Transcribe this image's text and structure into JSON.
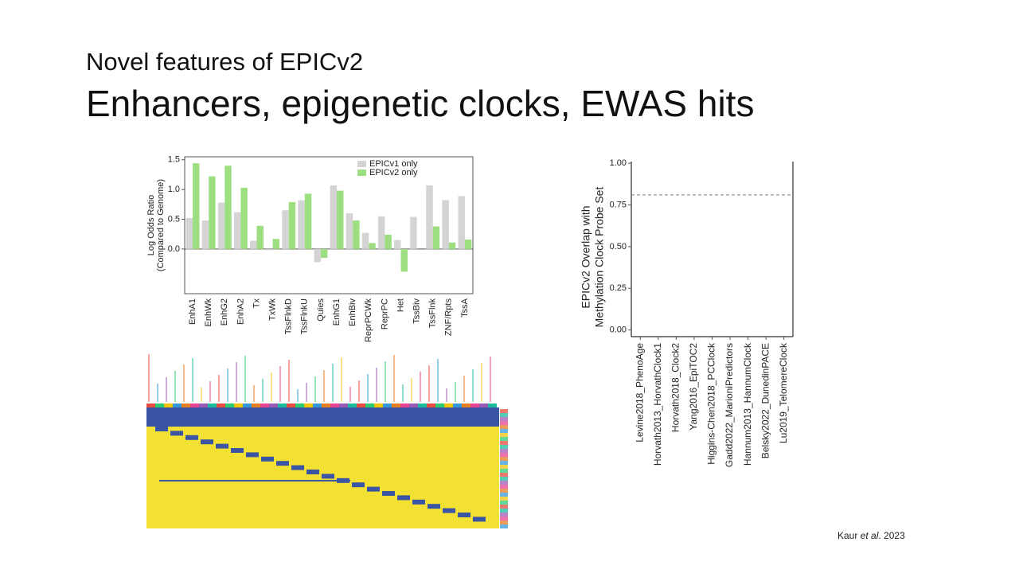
{
  "subtitle": "Novel features of EPICv2",
  "title": "Enhancers, epigenetic clocks, EWAS hits",
  "citation": [
    "Kaur ",
    "et al",
    ". 2023"
  ],
  "chart_data": [
    {
      "type": "bar",
      "y_label": [
        "Log Odds Ratio",
        "(Compared to Genome)"
      ],
      "categories": [
        "EnhA1",
        "EnhWk",
        "EnhG2",
        "EnhA2",
        "Tx",
        "TxWk",
        "TssFlnkD",
        "TssFlnkU",
        "Quies",
        "EnhG1",
        "EnhBiv",
        "ReprPCWk",
        "ReprPC",
        "Het",
        "TssBiv",
        "TssFlnk",
        "ZNF/Rpts",
        "TssA"
      ],
      "series": [
        {
          "name": "EPICv1 only",
          "color": "#d4d4d4",
          "values": [
            0.52,
            0.48,
            0.78,
            0.62,
            0.14,
            -0.02,
            0.65,
            0.82,
            -0.22,
            1.07,
            0.6,
            0.27,
            0.55,
            0.15,
            0.54,
            1.07,
            0.82,
            0.89
          ]
        },
        {
          "name": "EPICv2 only",
          "color": "#9ddf80",
          "values": [
            1.44,
            1.22,
            1.4,
            1.03,
            0.39,
            0.17,
            0.79,
            0.93,
            -0.15,
            0.98,
            0.48,
            0.1,
            0.24,
            -0.38,
            0,
            0.38,
            0.11,
            0.16
          ]
        }
      ],
      "ylim": [
        -0.75,
        1.55
      ],
      "yticks": [
        {
          "value": 0,
          "label": "0.0"
        },
        {
          "value": 0.5,
          "label": "0.5"
        },
        {
          "value": 1,
          "label": "1.0"
        },
        {
          "value": 1.5,
          "label": "1.5"
        }
      ],
      "legend": "top-right"
    },
    {
      "type": "bar",
      "y_label": [
        "EPICv2 Overlap with",
        "Methylation Clock Probe Set"
      ],
      "categories": [
        "Levine2018_PhenoAge",
        "Horvath2013_HorvathClock1",
        "Horvath2018_Clock2",
        "Yang2016_EpiTOC2",
        "Higgins-Chen2018_PCClock",
        "Gadd2022_MarioniPredictors",
        "Hannum2013_HannumClock",
        "Belsky2022_DunedinPACE",
        "Lu2019_TelomereClock"
      ],
      "hline": 0.81,
      "ylim": [
        -0.04,
        1.01
      ],
      "yticks": [
        {
          "value": 0,
          "label": "0.00"
        },
        {
          "value": 0.25,
          "label": "0.25"
        },
        {
          "value": 0.5,
          "label": "0.50"
        },
        {
          "value": 0.75,
          "label": "0.75"
        },
        {
          "value": 1,
          "label": "1.00"
        }
      ]
    }
  ]
}
